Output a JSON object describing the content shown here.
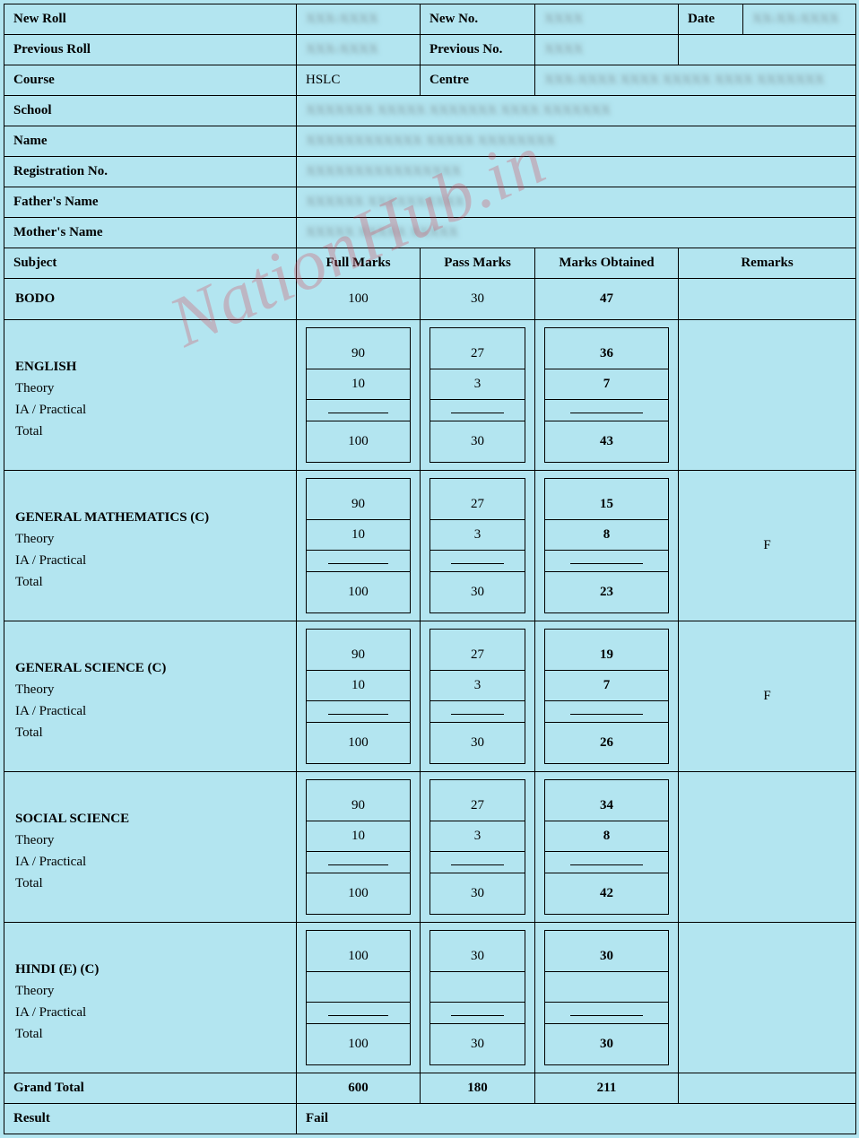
{
  "watermark": "NationHub.in",
  "info": {
    "new_roll_lbl": "New Roll",
    "new_roll_val": "XXX-XXXX",
    "new_no_lbl": "New No.",
    "new_no_val": "XXXX",
    "date_lbl": "Date",
    "date_val": "XX-XX-XXXX",
    "prev_roll_lbl": "Previous Roll",
    "prev_roll_val": "XXX-XXXX",
    "prev_no_lbl": "Previous No.",
    "prev_no_val": "XXXX",
    "course_lbl": "Course",
    "course_val": "HSLC",
    "centre_lbl": "Centre",
    "centre_val": "XXX-XXXX   XXXX XXXXX XXXX XXXXXXX",
    "school_lbl": "School",
    "school_val": "XXXXXXX   XXXXX XXXXXXX XXXX XXXXXXX",
    "name_lbl": "Name",
    "name_val": "XXXXXXXXXXXX XXXXX XXXXXXXX",
    "reg_lbl": "Registration No.",
    "reg_val": "XXXXXXXXXXXXXXXX",
    "father_lbl": "Father's Name",
    "father_val": "XXXXXX XXXXXXXXXX",
    "mother_lbl": "Mother's Name",
    "mother_val": "XXXXX XXXXX XXXXX"
  },
  "headers": {
    "subject": "Subject",
    "full": "Full Marks",
    "pass": "Pass Marks",
    "obtained": "Marks Obtained",
    "remarks": "Remarks"
  },
  "sublabels": {
    "theory": "Theory",
    "ia": "IA / Practical",
    "total": "Total"
  },
  "subjects": {
    "bodo": {
      "name": "BODO",
      "full": "100",
      "pass": "30",
      "obt": "47",
      "rem": ""
    },
    "english": {
      "name": "ENGLISH",
      "theory_full": "90",
      "theory_pass": "27",
      "theory_obt": "36",
      "ia_full": "10",
      "ia_pass": "3",
      "ia_obt": "7",
      "total_full": "100",
      "total_pass": "30",
      "total_obt": "43",
      "rem": ""
    },
    "maths": {
      "name": "GENERAL MATHEMATICS (C)",
      "theory_full": "90",
      "theory_pass": "27",
      "theory_obt": "15",
      "ia_full": "10",
      "ia_pass": "3",
      "ia_obt": "8",
      "total_full": "100",
      "total_pass": "30",
      "total_obt": "23",
      "rem": "F"
    },
    "science": {
      "name": "GENERAL SCIENCE (C)",
      "theory_full": "90",
      "theory_pass": "27",
      "theory_obt": "19",
      "ia_full": "10",
      "ia_pass": "3",
      "ia_obt": "7",
      "total_full": "100",
      "total_pass": "30",
      "total_obt": "26",
      "rem": "F"
    },
    "social": {
      "name": "SOCIAL SCIENCE",
      "theory_full": "90",
      "theory_pass": "27",
      "theory_obt": "34",
      "ia_full": "10",
      "ia_pass": "3",
      "ia_obt": "8",
      "total_full": "100",
      "total_pass": "30",
      "total_obt": "42",
      "rem": ""
    },
    "hindi": {
      "name": "HINDI (E) (C)",
      "theory_full": "100",
      "theory_pass": "30",
      "theory_obt": "30",
      "ia_full": "",
      "ia_pass": "",
      "ia_obt": "",
      "total_full": "100",
      "total_pass": "30",
      "total_obt": "30",
      "rem": ""
    }
  },
  "grand": {
    "label": "Grand Total",
    "full": "600",
    "pass": "180",
    "obt": "211"
  },
  "result": {
    "label": "Result",
    "value": "Fail"
  },
  "colors": {
    "bg": "#b3e5f0",
    "border": "#000000",
    "watermark": "rgba(215,60,80,0.28)"
  }
}
